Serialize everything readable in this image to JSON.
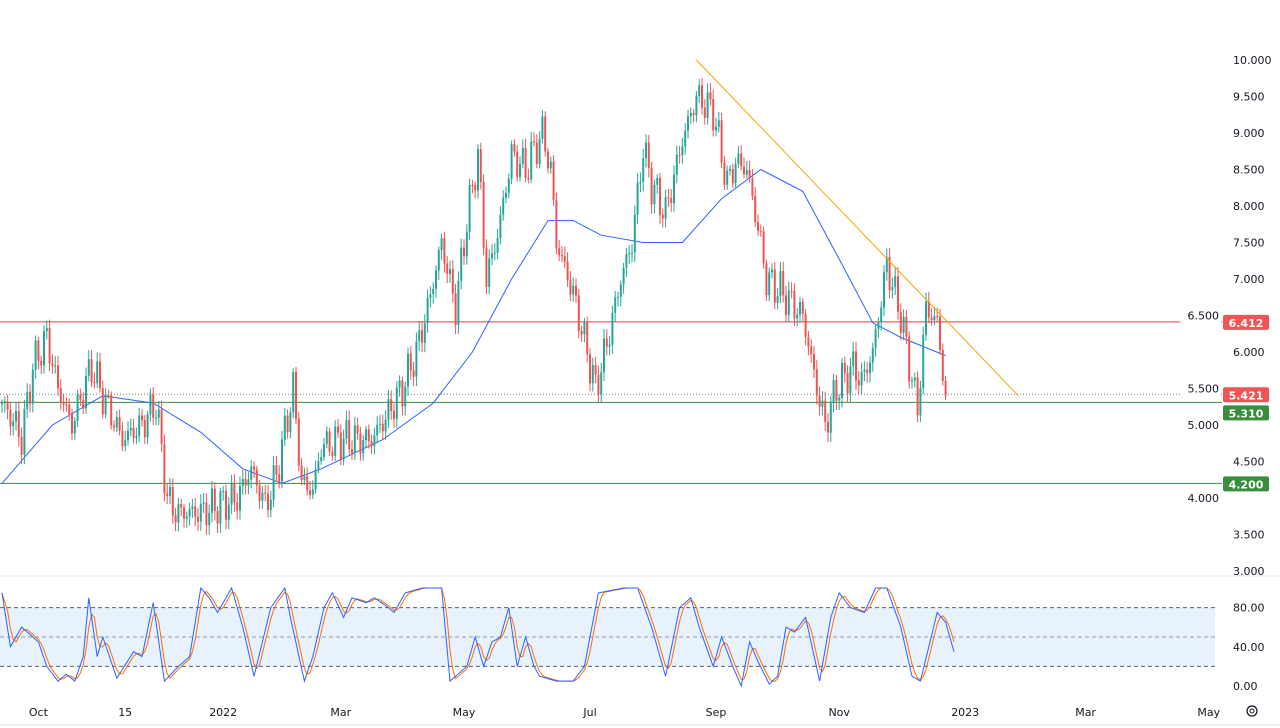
{
  "chart_data": {
    "type": "candlestick",
    "title": "",
    "price_axis": {
      "min": 3.0,
      "max": 10.0,
      "ticks": [
        "10.000",
        "9.500",
        "9.000",
        "8.500",
        "8.000",
        "7.500",
        "7.000",
        "6.500",
        "6.000",
        "5.500",
        "5.000",
        "4.500",
        "4.000",
        "3.500",
        "3.000"
      ]
    },
    "time_axis": {
      "ticks": [
        {
          "label": "Oct",
          "day": 13
        },
        {
          "label": "15",
          "day": 44
        },
        {
          "label": "2022",
          "day": 79
        },
        {
          "label": "Mar",
          "day": 121
        },
        {
          "label": "May",
          "day": 165
        },
        {
          "label": "Jul",
          "day": 210
        },
        {
          "label": "Sep",
          "day": 255
        },
        {
          "label": "Nov",
          "day": 299
        },
        {
          "label": "2023",
          "day": 344
        },
        {
          "label": "Mar",
          "day": 387
        },
        {
          "label": "May",
          "day": 431
        }
      ]
    },
    "close_keypoints": [
      [
        0,
        5.3
      ],
      [
        5,
        5.0
      ],
      [
        7,
        4.8
      ],
      [
        11,
        5.8
      ],
      [
        16,
        6.2
      ],
      [
        20,
        5.5
      ],
      [
        25,
        5.0
      ],
      [
        32,
        5.8
      ],
      [
        36,
        5.4
      ],
      [
        43,
        4.8
      ],
      [
        50,
        5.0
      ],
      [
        55,
        5.3
      ],
      [
        59,
        4.0
      ],
      [
        62,
        3.8
      ],
      [
        71,
        3.8
      ],
      [
        77,
        3.9
      ],
      [
        84,
        4.0
      ],
      [
        89,
        4.4
      ],
      [
        94,
        3.9
      ],
      [
        98,
        4.3
      ],
      [
        104,
        5.5
      ],
      [
        107,
        4.2
      ],
      [
        111,
        4.1
      ],
      [
        114,
        4.7
      ],
      [
        121,
        4.8
      ],
      [
        127,
        4.8
      ],
      [
        132,
        4.8
      ],
      [
        137,
        5.1
      ],
      [
        143,
        5.5
      ],
      [
        148,
        6.0
      ],
      [
        152,
        6.6
      ],
      [
        157,
        7.5
      ],
      [
        162,
        6.6
      ],
      [
        166,
        7.8
      ],
      [
        170,
        8.7
      ],
      [
        173,
        7.0
      ],
      [
        177,
        7.6
      ],
      [
        182,
        8.7
      ],
      [
        187,
        8.5
      ],
      [
        193,
        9.0
      ],
      [
        196,
        8.5
      ],
      [
        198,
        7.5
      ],
      [
        204,
        6.8
      ],
      [
        209,
        6.0
      ],
      [
        212,
        5.5
      ],
      [
        216,
        6.1
      ],
      [
        221,
        7.0
      ],
      [
        225,
        7.5
      ],
      [
        229,
        8.8
      ],
      [
        232,
        8.3
      ],
      [
        237,
        7.9
      ],
      [
        243,
        8.9
      ],
      [
        248,
        9.5
      ],
      [
        254,
        9.3
      ],
      [
        259,
        8.3
      ],
      [
        262,
        8.6
      ],
      [
        266,
        8.5
      ],
      [
        270,
        7.7
      ],
      [
        273,
        7.0
      ],
      [
        279,
        6.8
      ],
      [
        286,
        6.5
      ],
      [
        291,
        5.5
      ],
      [
        294,
        5.0
      ],
      [
        298,
        5.5
      ],
      [
        304,
        5.8
      ],
      [
        307,
        5.6
      ],
      [
        311,
        6.0
      ],
      [
        316,
        7.2
      ],
      [
        321,
        6.5
      ],
      [
        327,
        5.2
      ],
      [
        330,
        6.6
      ],
      [
        334,
        6.4
      ],
      [
        337,
        5.4
      ]
    ],
    "moving_average": [
      [
        0,
        4.2
      ],
      [
        18,
        5.0
      ],
      [
        36,
        5.4
      ],
      [
        54,
        5.3
      ],
      [
        71,
        4.9
      ],
      [
        86,
        4.4
      ],
      [
        100,
        4.2
      ],
      [
        114,
        4.4
      ],
      [
        136,
        4.8
      ],
      [
        154,
        5.3
      ],
      [
        168,
        6.0
      ],
      [
        182,
        7.0
      ],
      [
        195,
        7.8
      ],
      [
        204,
        7.8
      ],
      [
        214,
        7.6
      ],
      [
        229,
        7.5
      ],
      [
        243,
        7.5
      ],
      [
        257,
        8.1
      ],
      [
        271,
        8.5
      ],
      [
        286,
        8.2
      ],
      [
        300,
        7.2
      ],
      [
        311,
        6.4
      ],
      [
        321,
        6.2
      ],
      [
        337,
        5.95
      ]
    ],
    "trendline": [
      [
        248,
        10.0
      ],
      [
        363,
        5.4
      ]
    ],
    "levels": [
      {
        "label": "6.412",
        "value": 6.412,
        "color": "#f23645",
        "style": "solid"
      },
      {
        "label": "5.421",
        "value": 5.421,
        "color": "#f23645",
        "style": "dotted"
      },
      {
        "label": "5.310",
        "value": 5.31,
        "color": "#388e3c",
        "style": "solid"
      },
      {
        "label": "4.200",
        "value": 4.2,
        "color": "#388e3c",
        "style": "solid"
      }
    ],
    "oscillator": {
      "type": "stochastic",
      "ticks": [
        "80.00",
        "40.00",
        "0.00"
      ],
      "tick_values": [
        80,
        40,
        0
      ],
      "bands": [
        20,
        50,
        80
      ],
      "k_keypoints": [
        [
          0,
          95
        ],
        [
          3,
          40
        ],
        [
          7,
          60
        ],
        [
          13,
          45
        ],
        [
          16,
          20
        ],
        [
          20,
          5
        ],
        [
          23,
          12
        ],
        [
          26,
          5
        ],
        [
          29,
          30
        ],
        [
          31,
          90
        ],
        [
          34,
          30
        ],
        [
          36,
          50
        ],
        [
          41,
          8
        ],
        [
          47,
          35
        ],
        [
          50,
          30
        ],
        [
          54,
          85
        ],
        [
          58,
          5
        ],
        [
          63,
          20
        ],
        [
          67,
          30
        ],
        [
          71,
          100
        ],
        [
          74,
          90
        ],
        [
          77,
          75
        ],
        [
          82,
          100
        ],
        [
          86,
          60
        ],
        [
          90,
          10
        ],
        [
          96,
          80
        ],
        [
          101,
          100
        ],
        [
          103,
          70
        ],
        [
          108,
          5
        ],
        [
          111,
          30
        ],
        [
          115,
          80
        ],
        [
          118,
          95
        ],
        [
          122,
          70
        ],
        [
          125,
          90
        ],
        [
          130,
          85
        ],
        [
          133,
          90
        ],
        [
          138,
          80
        ],
        [
          140,
          75
        ],
        [
          144,
          95
        ],
        [
          150,
          100
        ],
        [
          157,
          100
        ],
        [
          160,
          5
        ],
        [
          166,
          20
        ],
        [
          169,
          50
        ],
        [
          172,
          20
        ],
        [
          175,
          45
        ],
        [
          178,
          50
        ],
        [
          181,
          80
        ],
        [
          184,
          20
        ],
        [
          187,
          50
        ],
        [
          190,
          20
        ],
        [
          192,
          10
        ],
        [
          198,
          5
        ],
        [
          204,
          5
        ],
        [
          208,
          20
        ],
        [
          213,
          95
        ],
        [
          222,
          100
        ],
        [
          227,
          100
        ],
        [
          232,
          60
        ],
        [
          237,
          10
        ],
        [
          242,
          80
        ],
        [
          246,
          90
        ],
        [
          249,
          60
        ],
        [
          254,
          20
        ],
        [
          257,
          50
        ],
        [
          261,
          20
        ],
        [
          264,
          0
        ],
        [
          267,
          45
        ],
        [
          270,
          25
        ],
        [
          274,
          2
        ],
        [
          277,
          10
        ],
        [
          280,
          60
        ],
        [
          283,
          55
        ],
        [
          287,
          70
        ],
        [
          292,
          5
        ],
        [
          296,
          70
        ],
        [
          299,
          95
        ],
        [
          303,
          80
        ],
        [
          308,
          75
        ],
        [
          312,
          100
        ],
        [
          316,
          100
        ],
        [
          321,
          60
        ],
        [
          325,
          10
        ],
        [
          328,
          5
        ],
        [
          331,
          40
        ],
        [
          334,
          75
        ],
        [
          337,
          65
        ],
        [
          340,
          35
        ]
      ]
    },
    "colors": {
      "up": "#26a69a",
      "down": "#ef5350",
      "ma": "#2962ff",
      "trend": "#f7a600",
      "k": "#2962ff",
      "d": "#ff6d00",
      "band_fill": "#e8f2fd"
    }
  },
  "footer": {
    "settings_icon": "gear-icon"
  }
}
